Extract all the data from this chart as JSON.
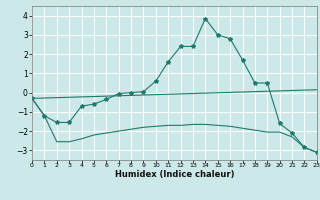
{
  "background_color": "#cce8e8",
  "grid_color": "#ffffff",
  "line_color": "#1e7a6a",
  "x_min": 0,
  "x_max": 23,
  "y_min": -3.5,
  "y_max": 4.5,
  "yticks": [
    -3,
    -2,
    -1,
    0,
    1,
    2,
    3,
    4
  ],
  "xticks": [
    0,
    1,
    2,
    3,
    4,
    5,
    6,
    7,
    8,
    9,
    10,
    11,
    12,
    13,
    14,
    15,
    16,
    17,
    18,
    19,
    20,
    21,
    22,
    23
  ],
  "xlabel": "Humidex (Indice chaleur)",
  "series": [
    {
      "x": [
        0,
        1,
        2,
        3,
        4,
        5,
        6,
        7,
        8,
        9,
        10,
        11,
        12,
        13,
        14,
        15,
        16,
        17,
        18,
        19,
        20,
        21,
        22,
        23
      ],
      "y": [
        -0.3,
        -1.2,
        -1.55,
        -1.55,
        -0.7,
        -0.6,
        -0.35,
        -0.05,
        0.0,
        0.05,
        0.6,
        1.6,
        2.4,
        2.4,
        3.85,
        3.0,
        2.8,
        1.7,
        0.5,
        0.5,
        -1.6,
        -2.1,
        -2.85,
        -3.1
      ],
      "marker": true
    },
    {
      "x": [
        0,
        1,
        2,
        3,
        4,
        5,
        6,
        7,
        8,
        9,
        10,
        11,
        12,
        13,
        14,
        15,
        16,
        17,
        18,
        19,
        20,
        21,
        22,
        23
      ],
      "y": [
        -0.3,
        -1.2,
        -2.55,
        -2.55,
        -2.4,
        -2.2,
        -2.1,
        -2.0,
        -1.9,
        -1.8,
        -1.75,
        -1.7,
        -1.7,
        -1.65,
        -1.65,
        -1.7,
        -1.75,
        -1.85,
        -1.95,
        -2.05,
        -2.05,
        -2.3,
        -2.85,
        -3.1
      ],
      "marker": false
    },
    {
      "x": [
        0,
        23
      ],
      "y": [
        -0.3,
        0.15
      ],
      "marker": false
    }
  ]
}
